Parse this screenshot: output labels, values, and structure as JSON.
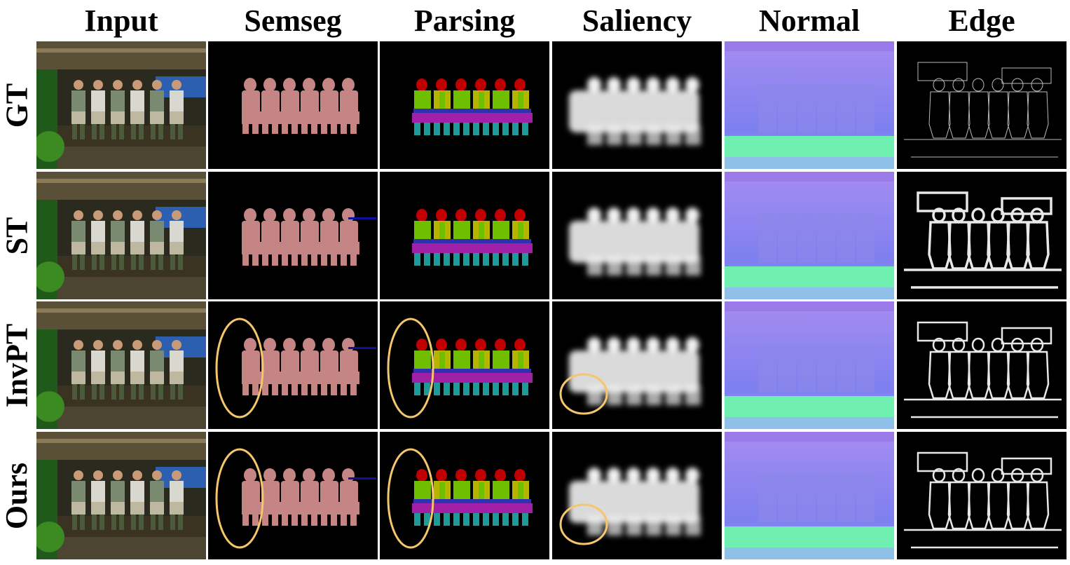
{
  "columns": [
    "Input",
    "Semseg",
    "Parsing",
    "Saliency",
    "Normal",
    "Edge"
  ],
  "rows": [
    "GT",
    "ST",
    "InvPT",
    "Ours"
  ],
  "colors": {
    "person_mask": "#c58585",
    "highlight_circle": "#f5c66b",
    "parse_head": "#c00000",
    "parse_torso": "#6fbf00",
    "parse_torso_alt": "#b5b500",
    "parse_arms": "#3030b0",
    "parse_legs_upper": "#a020a8",
    "parse_legs_lower": "#1f9a9a",
    "normal_base": "#7d7ff0",
    "normal_floor": "#6ff0b0"
  }
}
